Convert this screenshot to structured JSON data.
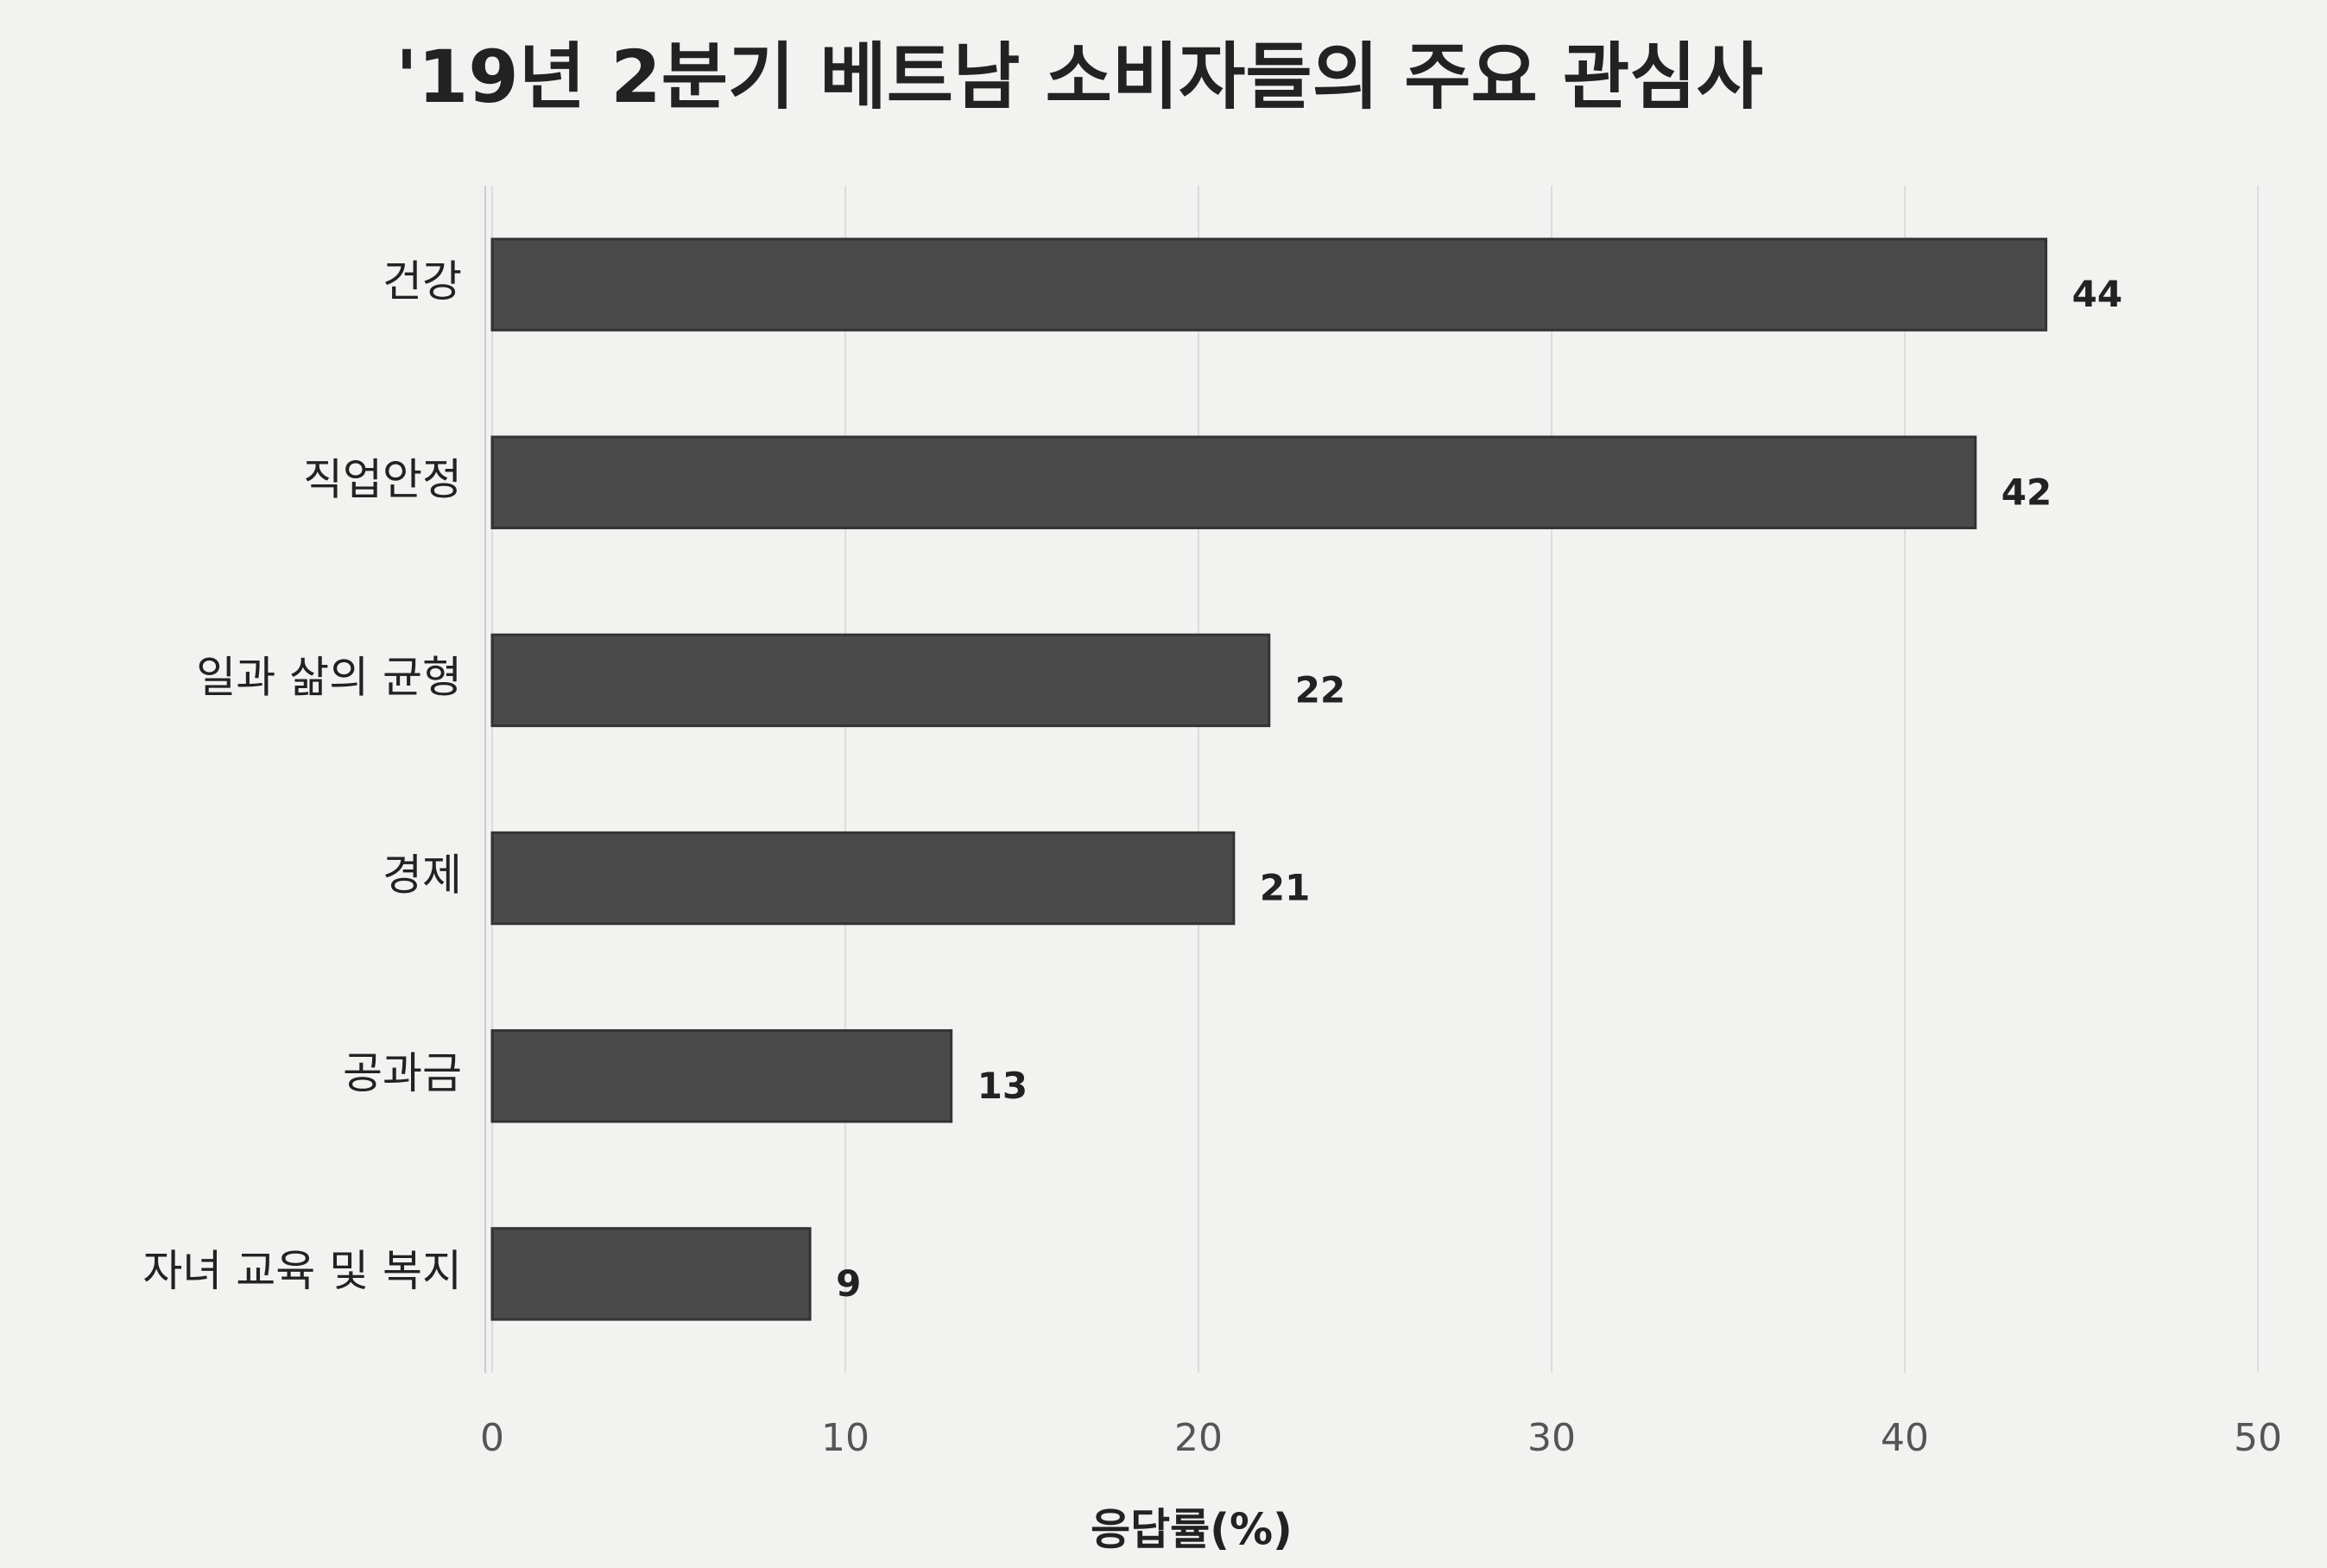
{
  "chart_data": {
    "type": "bar",
    "orientation": "horizontal",
    "title": "'19년 2분기 베트남 소비자들의 주요 관심사",
    "categories": [
      "건강",
      "직업안정",
      "일과 삶의 균형",
      "경제",
      "공과금",
      "자녀 교육 및 복지"
    ],
    "values": [
      44,
      42,
      22,
      21,
      13,
      9
    ],
    "color": "#4a4a4a",
    "xlabel": "응답률(%)",
    "xlim": [
      0,
      50
    ],
    "xticks": [
      0,
      10,
      20,
      30,
      40,
      50
    ],
    "grid": true
  }
}
